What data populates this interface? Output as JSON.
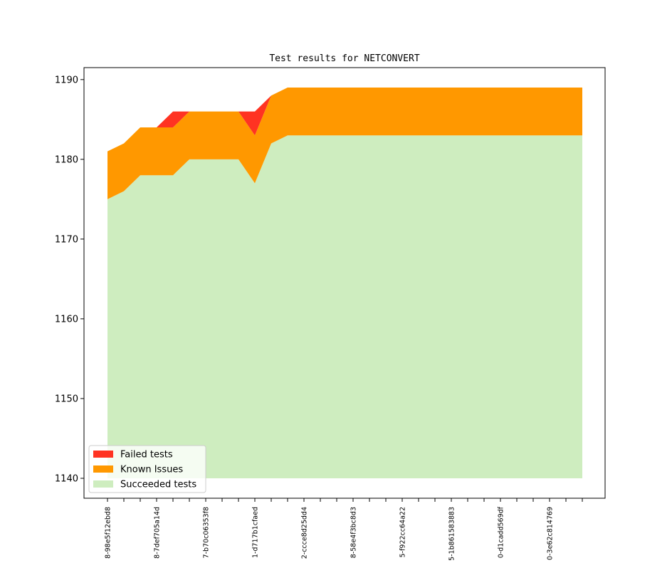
{
  "chart_data": {
    "type": "area",
    "title": "Test results for NETCONVERT",
    "xlabel": "",
    "ylabel": "",
    "ylim": [
      1137.5,
      1191.5
    ],
    "yticks": [
      1140,
      1150,
      1160,
      1170,
      1180,
      1190
    ],
    "x_tick_labels": [
      "8-98e5f12ebd8",
      "8-7def705a14d",
      "7-b70c06353f8",
      "1-d717b1cfaed",
      "2-ccce8d25dd4",
      "8-58e4f3bc8d3",
      "5-f922cc64a22",
      "5-1b861583883",
      "0-d1cadd569df",
      "0-3e62c814769"
    ],
    "label_every": 3,
    "num_points": 30,
    "baseline": 1140,
    "grid": false,
    "legend_position": "lower-left",
    "series": [
      {
        "name": "Succeeded tests",
        "color": "#ceedbf",
        "values": [
          1175,
          1176,
          1178,
          1178,
          1178,
          1180,
          1180,
          1180,
          1180,
          1177,
          1182,
          1183,
          1183,
          1183,
          1183,
          1183,
          1183,
          1183,
          1183,
          1183,
          1183,
          1183,
          1183,
          1183,
          1183,
          1183,
          1183,
          1183,
          1183,
          1183
        ]
      },
      {
        "name": "Known Issues",
        "color": "#ff9800",
        "values": [
          6,
          6,
          6,
          6,
          6,
          6,
          6,
          6,
          6,
          6,
          6,
          6,
          6,
          6,
          6,
          6,
          6,
          6,
          6,
          6,
          6,
          6,
          6,
          6,
          6,
          6,
          6,
          6,
          6,
          6
        ]
      },
      {
        "name": "Failed tests",
        "color": "#ff3322",
        "values": [
          0,
          0,
          0,
          0,
          2,
          0,
          0,
          0,
          0,
          3,
          0,
          0,
          0,
          0,
          0,
          0,
          0,
          0,
          0,
          0,
          0,
          0,
          0,
          0,
          0,
          0,
          0,
          0,
          0,
          0
        ]
      }
    ],
    "legend_order": [
      "Failed tests",
      "Known Issues",
      "Succeeded tests"
    ]
  }
}
